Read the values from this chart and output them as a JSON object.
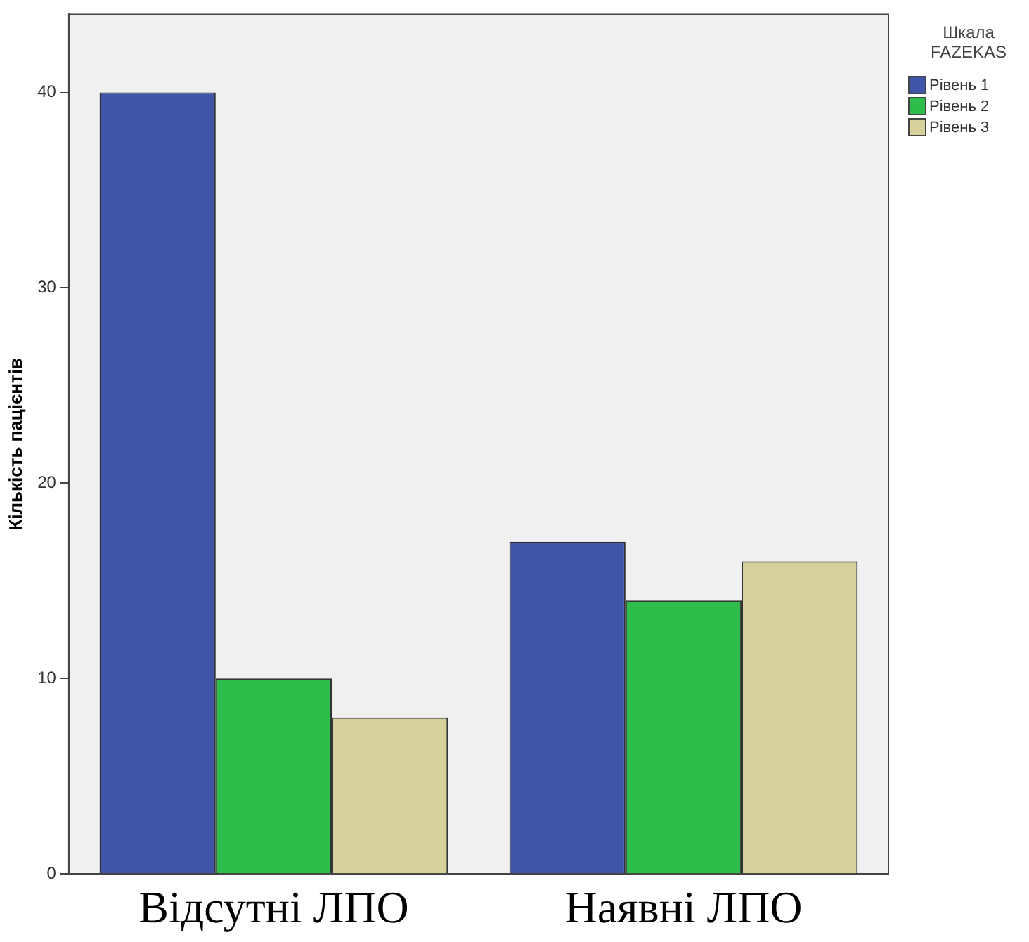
{
  "chart_data": {
    "type": "bar",
    "ylabel": "Кількість пацієнтів",
    "legend_title": "Шкала FAZEKAS",
    "categories": [
      "Відсутні ЛПО",
      "Наявні ЛПО"
    ],
    "series": [
      {
        "name": "Рівень 1",
        "color": "#3f56a8",
        "values": [
          40,
          17
        ]
      },
      {
        "name": "Рівень 2",
        "color": "#2ebc4a",
        "values": [
          10,
          14
        ]
      },
      {
        "name": "Рівень 3",
        "color": "#d6d09a",
        "values": [
          8,
          16
        ]
      }
    ],
    "ylim": [
      0,
      44
    ],
    "yticks": [
      0,
      10,
      20,
      30,
      40
    ],
    "grid": false,
    "legend": "right"
  }
}
